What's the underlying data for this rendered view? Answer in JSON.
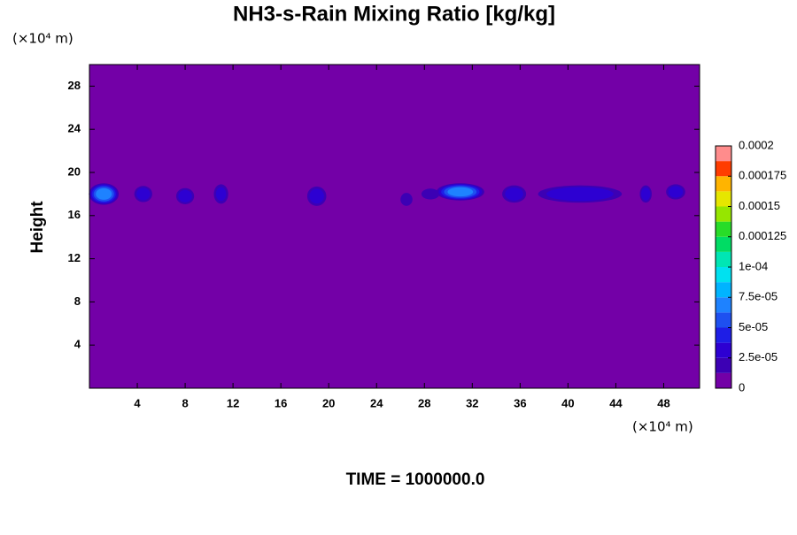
{
  "chart_data": {
    "type": "contour",
    "title": "NH3-s-Rain Mixing Ratio [kg/kg]",
    "ylabel": "Height",
    "x_unit": "(×10⁴ m)",
    "y_unit": "(×10⁴ m)",
    "footer": "TIME = 1000000.0",
    "xlim": [
      0,
      51
    ],
    "ylim": [
      0,
      30
    ],
    "xticks": [
      4,
      8,
      12,
      16,
      20,
      24,
      28,
      32,
      36,
      40,
      44,
      48
    ],
    "yticks": [
      4,
      8,
      12,
      16,
      20,
      24,
      28
    ],
    "clim": [
      0,
      0.0002
    ],
    "cticks": [
      0,
      {
        "value": 2.5e-05,
        "label": "2.5e-05"
      },
      {
        "value": 5e-05,
        "label": "5e-05"
      },
      {
        "value": 7.5e-05,
        "label": "7.5e-05"
      },
      {
        "value": 0.0001,
        "label": "1e-04"
      },
      0.000125,
      0.00015,
      0.000175,
      0.0002
    ],
    "colors": [
      "#7300a7",
      "#3c00b4",
      "#2d00d2",
      "#1e1ee6",
      "#1e50f0",
      "#1e82ff",
      "#00b4ff",
      "#00e1f0",
      "#00e6b4",
      "#00dc64",
      "#28dc28",
      "#96e600",
      "#e6e600",
      "#ffb400",
      "#ff3c00",
      "#ff8c8c"
    ],
    "x": [
      1.2,
      4.5,
      8,
      11,
      13.5,
      19,
      23.2,
      26.5,
      28.5,
      31,
      35.5,
      41,
      46.5,
      49
    ],
    "y": [
      18,
      18,
      17.8,
      18,
      17.5,
      17.8,
      19.1,
      17.5,
      18,
      18.2,
      18,
      18,
      18,
      18.2
    ],
    "widths": [
      2.5,
      1.5,
      1.5,
      1.2,
      0.6,
      1.6,
      0.5,
      1,
      1.5,
      4,
      2,
      7,
      1,
      1.6
    ],
    "heights": [
      2,
      1.5,
      1.5,
      1.8,
      0.6,
      1.8,
      0.4,
      1.2,
      1,
      1.6,
      1.6,
      1.6,
      1.6,
      1.4
    ],
    "values": [
      7e-05,
      3e-05,
      3e-05,
      2.5e-05,
      1e-05,
      3e-05,
      5e-06,
      1.5e-05,
      2e-05,
      7e-05,
      3e-05,
      3.5e-05,
      3e-05,
      3e-05
    ]
  }
}
